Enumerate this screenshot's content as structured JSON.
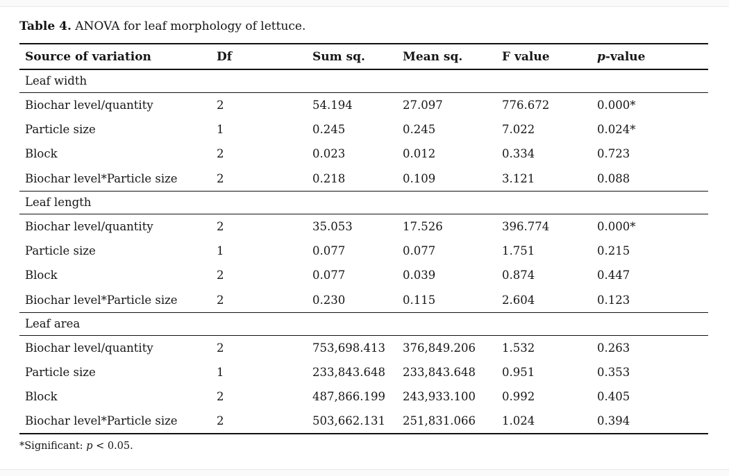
{
  "caption": {
    "label": "Table 4.",
    "text": " ANOVA for leaf morphology of lettuce."
  },
  "table": {
    "headers": [
      "Source of variation",
      "Df",
      "Sum sq.",
      "Mean sq.",
      "F value",
      "p-value"
    ],
    "p_header": {
      "italic": "p",
      "rest": "-value"
    },
    "sections": [
      {
        "label": "Leaf width",
        "rows": [
          [
            "Biochar level/quantity",
            "2",
            "54.194",
            "27.097",
            "776.672",
            "0.000*"
          ],
          [
            "Particle size",
            "1",
            "0.245",
            "0.245",
            "7.022",
            "0.024*"
          ],
          [
            "Block",
            "2",
            "0.023",
            "0.012",
            "0.334",
            "0.723"
          ],
          [
            "Biochar level*Particle size",
            "2",
            "0.218",
            "0.109",
            "3.121",
            "0.088"
          ]
        ]
      },
      {
        "label": "Leaf length",
        "rows": [
          [
            "Biochar level/quantity",
            "2",
            "35.053",
            "17.526",
            "396.774",
            "0.000*"
          ],
          [
            "Particle size",
            "1",
            "0.077",
            "0.077",
            "1.751",
            "0.215"
          ],
          [
            "Block",
            "2",
            "0.077",
            "0.039",
            "0.874",
            "0.447"
          ],
          [
            "Biochar level*Particle size",
            "2",
            "0.230",
            "0.115",
            "2.604",
            "0.123"
          ]
        ]
      },
      {
        "label": "Leaf area",
        "rows": [
          [
            "Biochar level/quantity",
            "2",
            "753,698.413",
            "376,849.206",
            "1.532",
            "0.263"
          ],
          [
            "Particle size",
            "1",
            "233,843.648",
            "233,843.648",
            "0.951",
            "0.353"
          ],
          [
            "Block",
            "2",
            "487,866.199",
            "243,933.100",
            "0.992",
            "0.405"
          ],
          [
            "Biochar level*Particle size",
            "2",
            "503,662.131",
            "251,831.066",
            "1.024",
            "0.394"
          ]
        ]
      }
    ]
  },
  "footnote": {
    "star": "*",
    "pre": "Significant: ",
    "p": "p",
    "post": " < 0.05."
  }
}
